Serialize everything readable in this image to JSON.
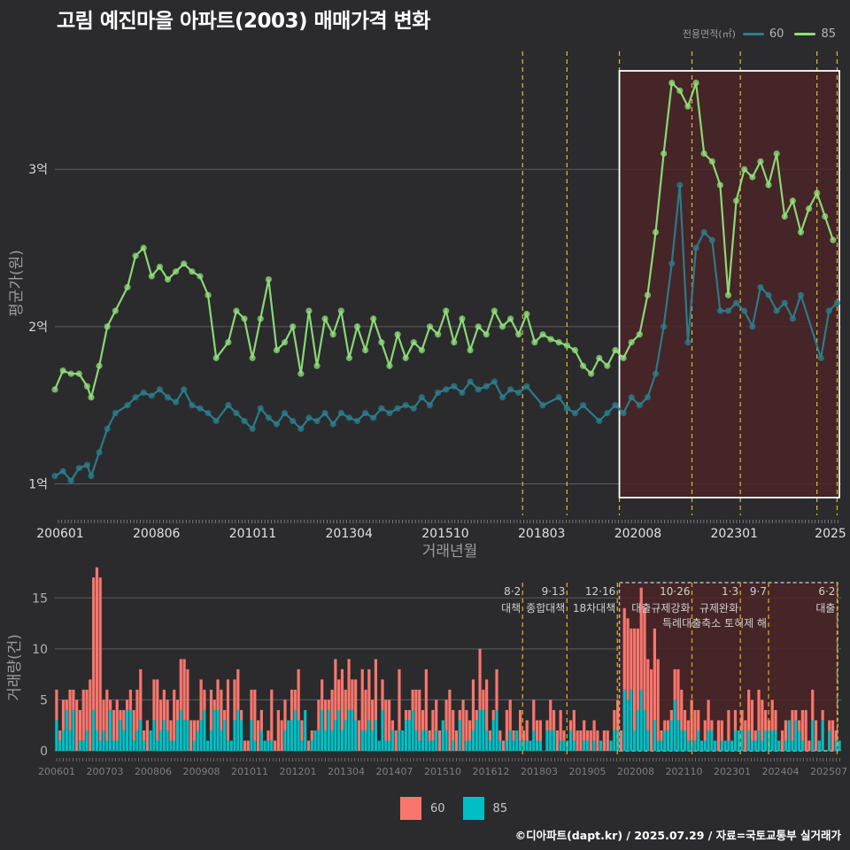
{
  "title": "고림 예진마을 아파트(2003) 매매가격 변화",
  "legend": {
    "title": "전용면적(㎡)",
    "items": [
      {
        "label": "60",
        "color": "#2a7f8e"
      },
      {
        "label": "85",
        "color": "#8fe07a"
      }
    ]
  },
  "footer": "©디아파트(dapt.kr) / 2025.07.29 / 자료=국토교통부 실거래가",
  "chart_data": [
    {
      "type": "line",
      "ylabel": "평균가(원)",
      "xlabel": "거래년월",
      "y_ticks": [
        {
          "value": 1,
          "label": "1억"
        },
        {
          "value": 2,
          "label": "2억"
        },
        {
          "value": 3,
          "label": "3억"
        }
      ],
      "x_ticks": [
        "200601",
        "200806",
        "201011",
        "201304",
        "201510",
        "201803",
        "202008",
        "202301",
        "2025"
      ],
      "x_range": [
        2006.0,
        2025.5
      ],
      "y_range": [
        0.8,
        3.75
      ],
      "grid": true,
      "highlight_range": [
        2020.0,
        2025.5
      ],
      "policy_lines": [
        2017.6,
        2018.7,
        2020.0,
        2021.8,
        2023.0,
        2024.9,
        2025.4
      ],
      "series": [
        {
          "name": "85",
          "color": "#8fe07a",
          "points": [
            [
              2006.0,
              1.6
            ],
            [
              2006.2,
              1.72
            ],
            [
              2006.4,
              1.7
            ],
            [
              2006.6,
              1.7
            ],
            [
              2006.8,
              1.62
            ],
            [
              2006.9,
              1.55
            ],
            [
              2007.1,
              1.75
            ],
            [
              2007.3,
              2.0
            ],
            [
              2007.5,
              2.1
            ],
            [
              2007.8,
              2.25
            ],
            [
              2008.0,
              2.45
            ],
            [
              2008.2,
              2.5
            ],
            [
              2008.4,
              2.32
            ],
            [
              2008.6,
              2.38
            ],
            [
              2008.8,
              2.3
            ],
            [
              2009.0,
              2.35
            ],
            [
              2009.2,
              2.4
            ],
            [
              2009.4,
              2.35
            ],
            [
              2009.6,
              2.32
            ],
            [
              2009.8,
              2.2
            ],
            [
              2010.0,
              1.8
            ],
            [
              2010.3,
              1.9
            ],
            [
              2010.5,
              2.1
            ],
            [
              2010.7,
              2.05
            ],
            [
              2010.9,
              1.8
            ],
            [
              2011.1,
              2.05
            ],
            [
              2011.3,
              2.3
            ],
            [
              2011.5,
              1.85
            ],
            [
              2011.7,
              1.9
            ],
            [
              2011.9,
              2.0
            ],
            [
              2012.1,
              1.7
            ],
            [
              2012.3,
              2.1
            ],
            [
              2012.5,
              1.75
            ],
            [
              2012.7,
              2.05
            ],
            [
              2012.9,
              1.95
            ],
            [
              2013.1,
              2.1
            ],
            [
              2013.3,
              1.8
            ],
            [
              2013.5,
              2.0
            ],
            [
              2013.7,
              1.85
            ],
            [
              2013.9,
              2.05
            ],
            [
              2014.1,
              1.9
            ],
            [
              2014.3,
              1.75
            ],
            [
              2014.5,
              1.95
            ],
            [
              2014.7,
              1.8
            ],
            [
              2014.9,
              1.9
            ],
            [
              2015.1,
              1.85
            ],
            [
              2015.3,
              2.0
            ],
            [
              2015.5,
              1.95
            ],
            [
              2015.7,
              2.1
            ],
            [
              2015.9,
              1.9
            ],
            [
              2016.1,
              2.05
            ],
            [
              2016.3,
              1.85
            ],
            [
              2016.5,
              2.0
            ],
            [
              2016.7,
              1.95
            ],
            [
              2016.9,
              2.1
            ],
            [
              2017.1,
              2.0
            ],
            [
              2017.3,
              2.05
            ],
            [
              2017.5,
              1.95
            ],
            [
              2017.7,
              2.08
            ],
            [
              2017.9,
              1.9
            ],
            [
              2018.1,
              1.95
            ],
            [
              2018.3,
              1.92
            ],
            [
              2018.5,
              1.9
            ],
            [
              2018.7,
              1.88
            ],
            [
              2018.9,
              1.85
            ],
            [
              2019.1,
              1.75
            ],
            [
              2019.3,
              1.7
            ],
            [
              2019.5,
              1.8
            ],
            [
              2019.7,
              1.75
            ],
            [
              2019.9,
              1.85
            ],
            [
              2020.1,
              1.8
            ],
            [
              2020.3,
              1.9
            ],
            [
              2020.5,
              1.95
            ],
            [
              2020.7,
              2.2
            ],
            [
              2020.9,
              2.6
            ],
            [
              2021.1,
              3.1
            ],
            [
              2021.3,
              3.55
            ],
            [
              2021.5,
              3.5
            ],
            [
              2021.7,
              3.4
            ],
            [
              2021.9,
              3.55
            ],
            [
              2022.1,
              3.1
            ],
            [
              2022.3,
              3.05
            ],
            [
              2022.5,
              2.9
            ],
            [
              2022.7,
              2.2
            ],
            [
              2022.9,
              2.8
            ],
            [
              2023.1,
              3.0
            ],
            [
              2023.3,
              2.95
            ],
            [
              2023.5,
              3.05
            ],
            [
              2023.7,
              2.9
            ],
            [
              2023.9,
              3.1
            ],
            [
              2024.1,
              2.7
            ],
            [
              2024.3,
              2.8
            ],
            [
              2024.5,
              2.6
            ],
            [
              2024.7,
              2.75
            ],
            [
              2024.9,
              2.85
            ],
            [
              2025.1,
              2.7
            ],
            [
              2025.3,
              2.55
            ]
          ]
        },
        {
          "name": "60",
          "color": "#2a7f8e",
          "points": [
            [
              2006.0,
              1.05
            ],
            [
              2006.2,
              1.08
            ],
            [
              2006.4,
              1.02
            ],
            [
              2006.6,
              1.1
            ],
            [
              2006.8,
              1.12
            ],
            [
              2006.9,
              1.05
            ],
            [
              2007.1,
              1.2
            ],
            [
              2007.3,
              1.35
            ],
            [
              2007.5,
              1.45
            ],
            [
              2007.8,
              1.5
            ],
            [
              2008.0,
              1.55
            ],
            [
              2008.2,
              1.58
            ],
            [
              2008.4,
              1.56
            ],
            [
              2008.6,
              1.6
            ],
            [
              2008.8,
              1.55
            ],
            [
              2009.0,
              1.52
            ],
            [
              2009.2,
              1.6
            ],
            [
              2009.4,
              1.5
            ],
            [
              2009.6,
              1.48
            ],
            [
              2009.8,
              1.45
            ],
            [
              2010.0,
              1.4
            ],
            [
              2010.3,
              1.5
            ],
            [
              2010.5,
              1.45
            ],
            [
              2010.7,
              1.4
            ],
            [
              2010.9,
              1.35
            ],
            [
              2011.1,
              1.48
            ],
            [
              2011.3,
              1.42
            ],
            [
              2011.5,
              1.38
            ],
            [
              2011.7,
              1.45
            ],
            [
              2011.9,
              1.4
            ],
            [
              2012.1,
              1.35
            ],
            [
              2012.3,
              1.42
            ],
            [
              2012.5,
              1.4
            ],
            [
              2012.7,
              1.45
            ],
            [
              2012.9,
              1.38
            ],
            [
              2013.1,
              1.45
            ],
            [
              2013.3,
              1.42
            ],
            [
              2013.5,
              1.4
            ],
            [
              2013.7,
              1.45
            ],
            [
              2013.9,
              1.42
            ],
            [
              2014.1,
              1.48
            ],
            [
              2014.3,
              1.45
            ],
            [
              2014.5,
              1.48
            ],
            [
              2014.7,
              1.5
            ],
            [
              2014.9,
              1.48
            ],
            [
              2015.1,
              1.55
            ],
            [
              2015.3,
              1.5
            ],
            [
              2015.5,
              1.58
            ],
            [
              2015.7,
              1.6
            ],
            [
              2015.9,
              1.62
            ],
            [
              2016.1,
              1.58
            ],
            [
              2016.3,
              1.65
            ],
            [
              2016.5,
              1.6
            ],
            [
              2016.7,
              1.62
            ],
            [
              2016.9,
              1.65
            ],
            [
              2017.1,
              1.55
            ],
            [
              2017.3,
              1.6
            ],
            [
              2017.5,
              1.58
            ],
            [
              2017.7,
              1.62
            ],
            [
              2018.1,
              1.5
            ],
            [
              2018.5,
              1.55
            ],
            [
              2018.7,
              1.48
            ],
            [
              2018.9,
              1.45
            ],
            [
              2019.1,
              1.5
            ],
            [
              2019.5,
              1.4
            ],
            [
              2019.7,
              1.45
            ],
            [
              2019.9,
              1.5
            ],
            [
              2020.1,
              1.45
            ],
            [
              2020.3,
              1.55
            ],
            [
              2020.5,
              1.5
            ],
            [
              2020.7,
              1.55
            ],
            [
              2020.9,
              1.7
            ],
            [
              2021.1,
              2.0
            ],
            [
              2021.3,
              2.4
            ],
            [
              2021.5,
              2.9
            ],
            [
              2021.7,
              1.9
            ],
            [
              2021.9,
              2.5
            ],
            [
              2022.1,
              2.6
            ],
            [
              2022.3,
              2.55
            ],
            [
              2022.5,
              2.1
            ],
            [
              2022.7,
              2.1
            ],
            [
              2022.9,
              2.15
            ],
            [
              2023.1,
              2.1
            ],
            [
              2023.3,
              2.0
            ],
            [
              2023.5,
              2.25
            ],
            [
              2023.7,
              2.2
            ],
            [
              2023.9,
              2.1
            ],
            [
              2024.1,
              2.15
            ],
            [
              2024.3,
              2.05
            ],
            [
              2024.5,
              2.2
            ],
            [
              2025.0,
              1.8
            ],
            [
              2025.2,
              2.1
            ],
            [
              2025.4,
              2.15
            ]
          ]
        }
      ]
    },
    {
      "type": "bar",
      "ylabel": "거래량(건)",
      "y_ticks": [
        0,
        5,
        10,
        15
      ],
      "y_range": [
        0,
        16.5
      ],
      "x_ticks": [
        "200601",
        "200703",
        "200806",
        "200908",
        "201011",
        "201201",
        "201304",
        "201407",
        "201510",
        "201612",
        "201803",
        "201905",
        "202008",
        "202110",
        "202301",
        "202404",
        "202507"
      ],
      "x_range": [
        2006.0,
        2025.5
      ],
      "highlight_range": [
        2020.0,
        2025.5
      ],
      "series": [
        {
          "name": "60",
          "color": "#f8766d"
        },
        {
          "name": "85",
          "color": "#00bfc4"
        }
      ],
      "policies": [
        {
          "x": 2017.6,
          "date": "8·2",
          "label": "대책"
        },
        {
          "x": 2018.7,
          "date": "9·13",
          "label": "종합대책"
        },
        {
          "x": 2019.95,
          "date": "12·16",
          "label": "18차대책"
        },
        {
          "x": 2021.8,
          "date": "10·26",
          "label": "대출규제강화"
        },
        {
          "x": 2023.0,
          "date": "1·3",
          "label": "규제완화"
        },
        {
          "x": 2023.7,
          "date": "9·7",
          "label": "특례대출축소 토허제 해"
        },
        {
          "x": 2025.4,
          "date": "6·2",
          "label": "대출"
        }
      ]
    }
  ]
}
